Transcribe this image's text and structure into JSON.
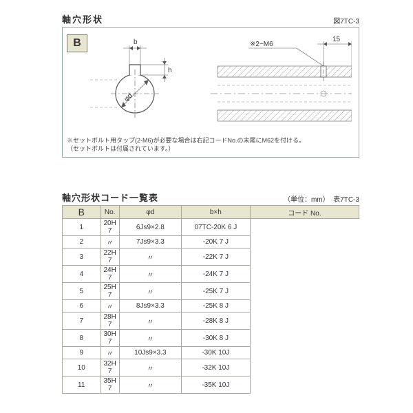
{
  "figure": {
    "title": "軸穴形状",
    "fig_ref": "図7TC-3",
    "badge": "B",
    "dim_b": "b",
    "dim_h": "h",
    "dim_phid": "φd",
    "callout_thread": "※2−M6",
    "dim_15": "15",
    "note_line1": "※セットボルト用タップ(2-M6)が必要な場合は右記コードNo.の末尾にM62を付ける。",
    "note_line2": "（セットボルトは付属されています。）",
    "colors": {
      "hatch": "#a0a0a0",
      "line": "#555555",
      "badge_bg": "#e8e5d0",
      "border": "#9aa",
      "table_header_bg": "#e8e5d0"
    }
  },
  "table": {
    "title": "軸穴形状コード一覧表",
    "unit_label": "（単位：mm）",
    "tbl_ref": "表7TC-3",
    "side_label": "B",
    "headers": {
      "no": "No.",
      "d": "φd",
      "bh": "b×h",
      "code": "コード No."
    },
    "rows": [
      {
        "no": "1",
        "d": "20H 7",
        "bh": "6Js9×2.8",
        "code": "07TC-20K 6 J"
      },
      {
        "no": "2",
        "d": "〃",
        "bh": "7Js9×3.3",
        "code": "-20K 7 J"
      },
      {
        "no": "3",
        "d": "22H 7",
        "bh": "〃",
        "code": "-22K 7 J"
      },
      {
        "no": "4",
        "d": "24H 7",
        "bh": "〃",
        "code": "-24K 7 J"
      },
      {
        "no": "5",
        "d": "25H 7",
        "bh": "〃",
        "code": "-25K 7 J"
      },
      {
        "no": "6",
        "d": "〃",
        "bh": "8Js9×3.3",
        "code": "-25K 8 J"
      },
      {
        "no": "7",
        "d": "28H 7",
        "bh": "〃",
        "code": "-28K 8 J"
      },
      {
        "no": "8",
        "d": "30H 7",
        "bh": "〃",
        "code": "-30K 8 J"
      },
      {
        "no": "9",
        "d": "〃",
        "bh": "10Js9×3.3",
        "code": "-30K 10J"
      },
      {
        "no": "10",
        "d": "32H 7",
        "bh": "〃",
        "code": "-32K 10J"
      },
      {
        "no": "11",
        "d": "35H 7",
        "bh": "〃",
        "code": "-35K 10J"
      }
    ]
  }
}
